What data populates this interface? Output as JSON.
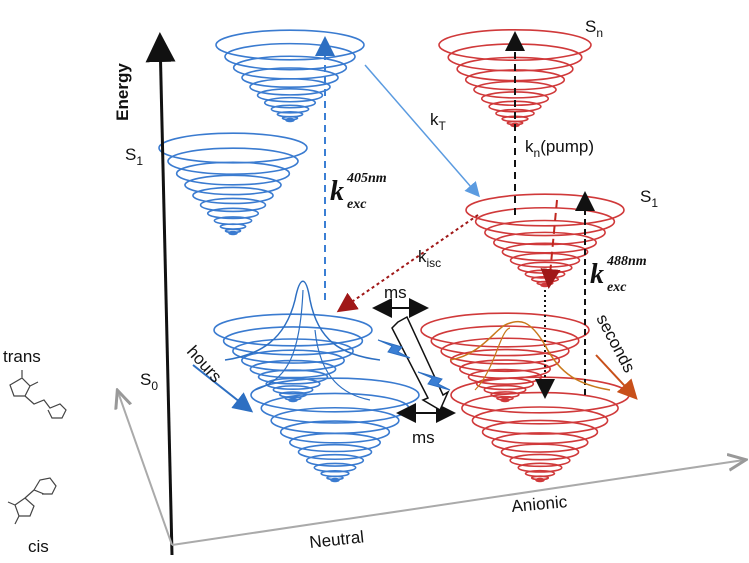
{
  "axis": {
    "label": "Energy"
  },
  "levels": {
    "sn": {
      "base": "S",
      "sub": "n"
    },
    "s1_left": {
      "base": "S",
      "sub": "1"
    },
    "s1_right": {
      "base": "S",
      "sub": "1"
    },
    "s0": {
      "base": "S",
      "sub": "0"
    }
  },
  "rates": {
    "kT": {
      "base": "k",
      "sub": "T"
    },
    "kn": {
      "base": "k",
      "sub": "n",
      "rest": "(pump)"
    },
    "kisc": {
      "base": "k",
      "sub": "isc"
    },
    "k405": {
      "base": "k",
      "sub": "exc",
      "sup": "405nm"
    },
    "k488": {
      "base": "k",
      "sub": "exc",
      "sup": "488nm"
    }
  },
  "timescales": {
    "ms_top": "ms",
    "ms_bottom": "ms",
    "seconds": "seconds",
    "hours": "hours"
  },
  "isomers": {
    "trans": "trans",
    "cis": "cis"
  },
  "states": {
    "neutral": "Neutral",
    "anionic": "Anionic"
  }
}
